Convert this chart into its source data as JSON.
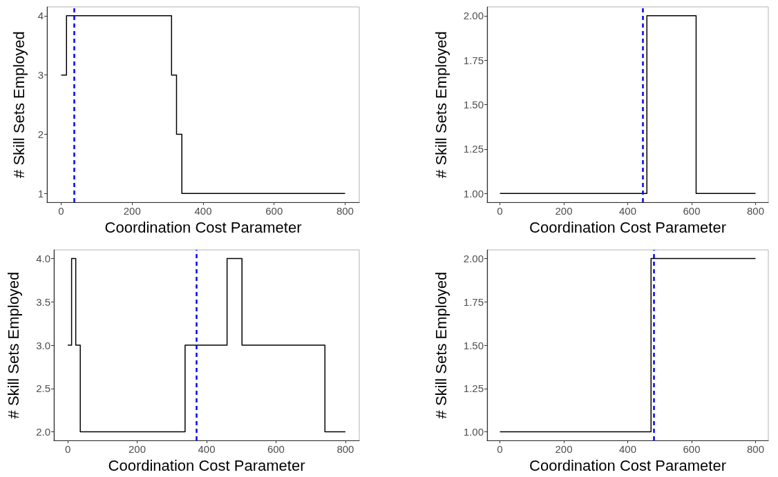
{
  "chart_data": [
    {
      "type": "step",
      "xlabel": "Coordination Cost Parameter",
      "ylabel": "# Skill Sets Employed",
      "x": [
        0,
        15,
        311,
        325,
        340,
        800
      ],
      "values": [
        3,
        4,
        3,
        2,
        1,
        1
      ],
      "color": "#000000",
      "marker": "none",
      "grid": false,
      "xlim": [
        -40,
        840
      ],
      "xticks": [
        0,
        200,
        400,
        600,
        800
      ],
      "ylim": [
        0.85,
        4.15
      ],
      "yticks": [
        1,
        2,
        3,
        4
      ],
      "ref_lines": [
        {
          "axis": "x",
          "value": 36,
          "color": "#0000ff",
          "line_style": "dashed"
        }
      ]
    },
    {
      "type": "step",
      "xlabel": "Coordination Cost Parameter",
      "ylabel": "# Skill Sets Employed",
      "x": [
        0,
        460,
        614,
        800
      ],
      "values": [
        1,
        2,
        1,
        1
      ],
      "color": "#000000",
      "marker": "none",
      "grid": false,
      "xlim": [
        -40,
        840
      ],
      "xticks": [
        0,
        200,
        400,
        600,
        800
      ],
      "ylim": [
        0.95,
        2.05
      ],
      "yticks": [
        {
          "value": 1,
          "label": "1.00"
        },
        {
          "value": 1.25,
          "label": "1.25"
        },
        {
          "value": 1.5,
          "label": "1.50"
        },
        {
          "value": 1.75,
          "label": "1.75"
        },
        {
          "value": 2,
          "label": "2.00"
        }
      ],
      "ref_lines": [
        {
          "axis": "x",
          "value": 446,
          "color": "#0000ff",
          "line_style": "dashed"
        }
      ]
    },
    {
      "type": "step",
      "xlabel": "Coordination Cost Parameter",
      "ylabel": "# Skill Sets Employed",
      "x": [
        0,
        11,
        23,
        36,
        338,
        459,
        502,
        741,
        800
      ],
      "values": [
        3,
        4,
        3,
        2,
        3,
        4,
        3,
        2,
        2
      ],
      "color": "#000000",
      "marker": "none",
      "grid": false,
      "xlim": [
        -40,
        840
      ],
      "xticks": [
        0,
        200,
        400,
        600,
        800
      ],
      "ylim": [
        1.9,
        4.1
      ],
      "yticks": [
        {
          "value": 2,
          "label": "2.0"
        },
        {
          "value": 2.5,
          "label": "2.5"
        },
        {
          "value": 3,
          "label": "3.0"
        },
        {
          "value": 3.5,
          "label": "3.5"
        },
        {
          "value": 4,
          "label": "4.0"
        }
      ],
      "ref_lines": [
        {
          "axis": "x",
          "value": 371,
          "color": "#0000ff",
          "line_style": "dashed"
        }
      ]
    },
    {
      "type": "step",
      "xlabel": "Coordination Cost Parameter",
      "ylabel": "# Skill Sets Employed",
      "x": [
        0,
        473,
        800
      ],
      "values": [
        1,
        2,
        2
      ],
      "color": "#000000",
      "marker": "none",
      "grid": false,
      "xlim": [
        -40,
        840
      ],
      "xticks": [
        0,
        200,
        400,
        600,
        800
      ],
      "ylim": [
        0.95,
        2.05
      ],
      "yticks": [
        {
          "value": 1,
          "label": "1.00"
        },
        {
          "value": 1.25,
          "label": "1.25"
        },
        {
          "value": 1.5,
          "label": "1.50"
        },
        {
          "value": 1.75,
          "label": "1.75"
        },
        {
          "value": 2,
          "label": "2.00"
        }
      ],
      "ref_lines": [
        {
          "axis": "x",
          "value": 481,
          "color": "#0000ff",
          "line_style": "dashed"
        }
      ]
    }
  ]
}
